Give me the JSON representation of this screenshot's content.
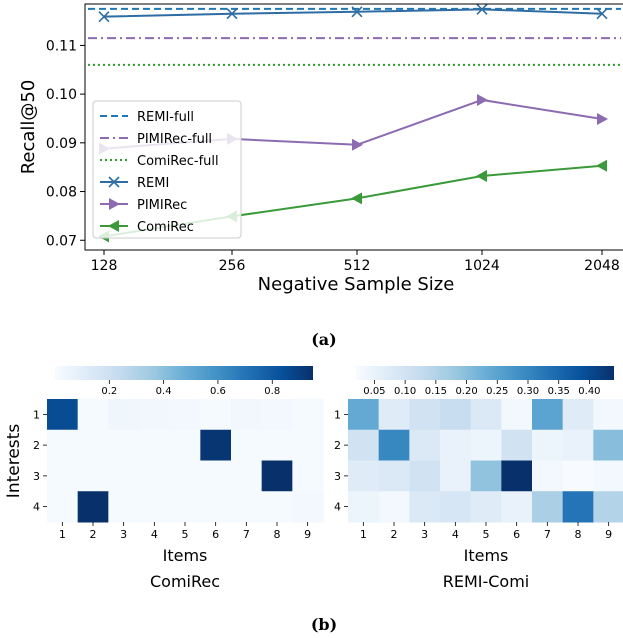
{
  "captions": {
    "a": "(a)",
    "b": "(b)"
  },
  "chart_data": [
    {
      "type": "line",
      "xlabel": "Negative Sample Size",
      "ylabel": "Recall@50",
      "categories": [
        "128",
        "256",
        "512",
        "1024",
        "2048"
      ],
      "ylim": [
        0.068,
        0.1185
      ],
      "yticks": [
        "0.07",
        "0.08",
        "0.09",
        "0.10",
        "0.11"
      ],
      "legend_position": "center-left",
      "series": [
        {
          "name": "REMI-full",
          "style": "dashed",
          "color": "#1f77b4",
          "values": [
            0.1175,
            0.1175,
            0.1175,
            0.1175,
            0.1175
          ]
        },
        {
          "name": "PIMIRec-full",
          "style": "dashdot",
          "color": "#8c6bb1",
          "values": [
            0.1115,
            0.1115,
            0.1115,
            0.1115,
            0.1115
          ]
        },
        {
          "name": "ComiRec-full",
          "style": "dotted",
          "color": "#2ca02c",
          "values": [
            0.106,
            0.106,
            0.106,
            0.106,
            0.106
          ]
        },
        {
          "name": "REMI",
          "style": "solid",
          "marker": "x",
          "color": "#2e6da4",
          "values": [
            0.1159,
            0.1165,
            0.1169,
            0.1174,
            0.1165
          ]
        },
        {
          "name": "PIMIRec",
          "style": "solid",
          "marker": "triangle-right",
          "color": "#8c6bb1",
          "values": [
            0.0888,
            0.0908,
            0.0896,
            0.0988,
            0.0949
          ]
        },
        {
          "name": "ComiRec",
          "style": "solid",
          "marker": "triangle-left",
          "color": "#3a9a3a",
          "values": [
            0.0708,
            0.0749,
            0.0786,
            0.0832,
            0.0853
          ]
        }
      ]
    },
    {
      "type": "heatmap",
      "title": "ComiRec",
      "xlabel": "Items",
      "ylabel": "Interests",
      "x": [
        "1",
        "2",
        "3",
        "4",
        "5",
        "6",
        "7",
        "8",
        "9"
      ],
      "y": [
        "1",
        "2",
        "3",
        "4"
      ],
      "colorbar": {
        "min": 0,
        "max": 0.95,
        "ticks": [
          "0.2",
          "0.4",
          "0.6",
          "0.8"
        ],
        "tick_values": [
          0.2,
          0.4,
          0.6,
          0.8
        ]
      },
      "values": [
        [
          0.85,
          0.01,
          0.04,
          0.03,
          0.02,
          0.01,
          0.03,
          0.02,
          0.01
        ],
        [
          0.01,
          0.01,
          0.01,
          0.01,
          0.01,
          0.93,
          0.01,
          0.01,
          0.01
        ],
        [
          0.01,
          0.01,
          0.01,
          0.01,
          0.01,
          0.01,
          0.01,
          0.95,
          0.01
        ],
        [
          0.01,
          0.95,
          0.01,
          0.01,
          0.01,
          0.01,
          0.01,
          0.01,
          0.02
        ]
      ]
    },
    {
      "type": "heatmap",
      "title": "REMI-Comi",
      "xlabel": "Items",
      "x": [
        "1",
        "2",
        "3",
        "4",
        "5",
        "6",
        "7",
        "8",
        "9"
      ],
      "y": [
        "1",
        "2",
        "3",
        "4"
      ],
      "colorbar": {
        "min": 0.02,
        "max": 0.44,
        "ticks": [
          "0.05",
          "0.10",
          "0.15",
          "0.20",
          "0.25",
          "0.30",
          "0.35",
          "0.40"
        ],
        "tick_values": [
          0.05,
          0.1,
          0.15,
          0.2,
          0.25,
          0.3,
          0.35,
          0.4
        ]
      },
      "values": [
        [
          0.24,
          0.07,
          0.1,
          0.12,
          0.08,
          0.03,
          0.25,
          0.07,
          0.03
        ],
        [
          0.1,
          0.3,
          0.08,
          0.05,
          0.04,
          0.1,
          0.04,
          0.05,
          0.2
        ],
        [
          0.07,
          0.08,
          0.1,
          0.05,
          0.19,
          0.44,
          0.03,
          0.02,
          0.03
        ],
        [
          0.04,
          0.03,
          0.08,
          0.09,
          0.07,
          0.05,
          0.16,
          0.33,
          0.15
        ]
      ]
    }
  ]
}
